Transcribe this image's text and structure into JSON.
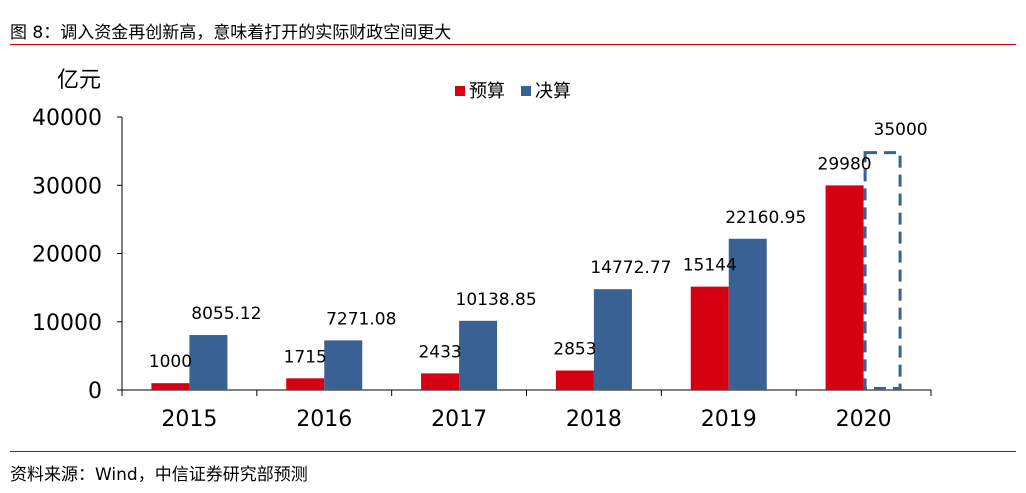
{
  "figure": {
    "title": "图 8：调入资金再创新高，意味着打开的实际财政空间更大",
    "source": "资料来源：Wind，中信证券研究部预测"
  },
  "colors": {
    "budget": "#d50011",
    "final": "#3a6193",
    "rule": "#c00000"
  },
  "chart_data": {
    "type": "bar",
    "ylabel": "亿元",
    "ylim": [
      0,
      40000
    ],
    "yticks": [
      0,
      10000,
      20000,
      30000,
      40000
    ],
    "categories": [
      "2015",
      "2016",
      "2017",
      "2018",
      "2019",
      "2020"
    ],
    "legend_position": "top-center",
    "grid": false,
    "series": [
      {
        "name": "预算",
        "color": "#d50011",
        "values": [
          1000,
          1715,
          2433,
          2853,
          15144,
          29980
        ],
        "labels": [
          "1000",
          "1715",
          "2433",
          "2853",
          "15144",
          "29980"
        ]
      },
      {
        "name": "决算",
        "color": "#3a6193",
        "values": [
          8055.12,
          7271.08,
          10138.85,
          14772.77,
          22160.95,
          35000
        ],
        "labels": [
          "8055.12",
          "7271.08",
          "10138.85",
          "14772.77",
          "22160.95",
          "35000"
        ],
        "dashed_last": true
      }
    ]
  }
}
